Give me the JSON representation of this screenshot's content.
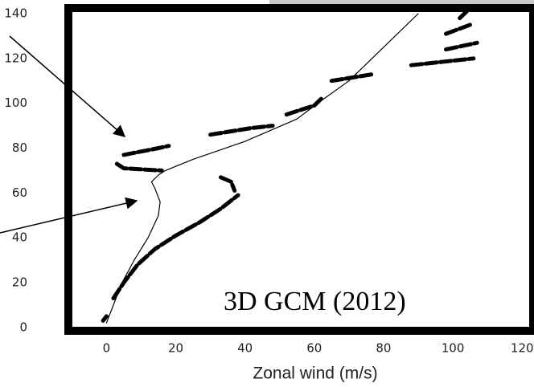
{
  "chart_data": {
    "type": "line",
    "xlabel": "Zonal wind (m/s)",
    "annotation": "3D GCM (2012)",
    "xlim": [
      -11,
      122.5
    ],
    "ylim": [
      -1.5,
      142.5
    ],
    "xticks": [
      0,
      20,
      40,
      60,
      80,
      100,
      120
    ],
    "yticks": [
      0,
      20,
      40,
      60,
      80,
      100,
      120,
      140
    ],
    "series": [
      {
        "color": "#000000",
        "style": "solid",
        "x": [
          0,
          4.5,
          8,
          12,
          15,
          15.5,
          14,
          13,
          15,
          17,
          25,
          40,
          55,
          61,
          70,
          80,
          90
        ],
        "values": [
          2,
          20,
          30,
          40,
          50,
          56,
          62,
          65,
          68,
          70,
          75,
          83,
          93,
          100,
          110,
          125,
          140
        ]
      },
      {
        "color": "#000000",
        "style": "dashed",
        "x": [
          -1,
          0,
          null,
          2,
          5,
          9,
          14,
          20,
          27,
          33,
          38,
          null,
          33,
          36,
          37,
          null,
          3,
          5,
          16,
          null,
          5,
          15,
          18,
          null,
          30,
          42,
          48,
          null,
          52,
          60,
          62,
          null,
          65,
          77,
          null,
          88,
          106,
          null,
          98,
          107,
          null,
          98,
          105,
          null,
          102,
          104
        ],
        "values": [
          3,
          5,
          null,
          13,
          20,
          28,
          35,
          41,
          47,
          53,
          59,
          null,
          67,
          65,
          61,
          null,
          73,
          71,
          70,
          null,
          77,
          80,
          81,
          null,
          86,
          89,
          90,
          null,
          95,
          99,
          102,
          null,
          110,
          113,
          null,
          117,
          120,
          null,
          124,
          127,
          null,
          131,
          135,
          null,
          138,
          141
        ]
      }
    ]
  }
}
